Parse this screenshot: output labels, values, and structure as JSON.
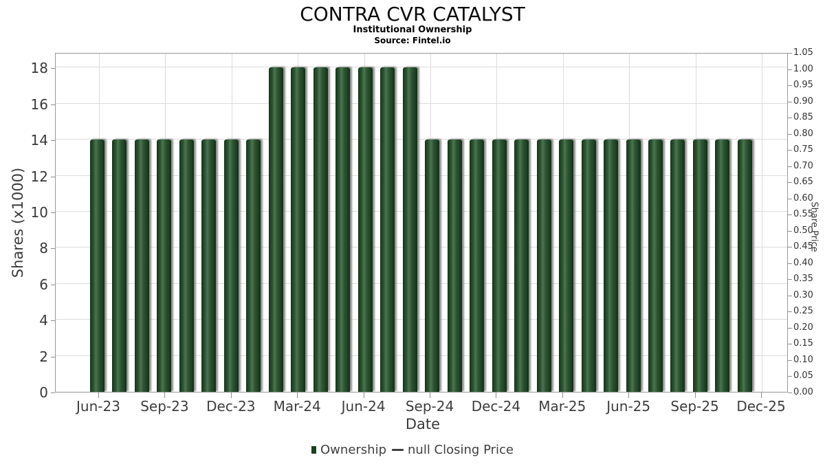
{
  "header": {
    "title": "CONTRA CVR CATALYST",
    "subtitle": "Institutional Ownership",
    "source": "Source: Fintel.io"
  },
  "axes": {
    "left": {
      "label": "Shares (x1000)",
      "ticks": [
        0,
        2,
        4,
        6,
        8,
        10,
        12,
        14,
        16,
        18
      ],
      "range": [
        0,
        18.85
      ]
    },
    "right": {
      "label": "Share Price",
      "ticks": [
        "0.00",
        "0.05",
        "0.10",
        "0.15",
        "0.20",
        "0.25",
        "0.30",
        "0.35",
        "0.40",
        "0.45",
        "0.50",
        "0.55",
        "0.60",
        "0.65",
        "0.70",
        "0.75",
        "0.80",
        "0.85",
        "0.90",
        "0.95",
        "1.00",
        "1.05"
      ],
      "range": [
        0,
        1.05
      ]
    },
    "x": {
      "label": "Date",
      "ticks": [
        "Jun-23",
        "Sep-23",
        "Dec-23",
        "Mar-24",
        "Jun-24",
        "Sep-24",
        "Dec-24",
        "Mar-25",
        "Jun-25",
        "Sep-25",
        "Dec-25"
      ]
    }
  },
  "legend": {
    "items": [
      {
        "label": "Ownership",
        "marker": "square",
        "color": "#1d4022"
      },
      {
        "label": "null Closing Price",
        "marker": "line",
        "color": "#3f3f3f"
      }
    ]
  },
  "chart_data": {
    "type": "bar",
    "title": "CONTRA CVR CATALYST",
    "subtitle": "Institutional Ownership",
    "source": "Source: Fintel.io",
    "xlabel": "Date",
    "ylabel_left": "Shares (x1000)",
    "ylabel_right": "Share Price",
    "ylim_left": [
      0,
      18.85
    ],
    "ylim_right": [
      0,
      1.05
    ],
    "grid": true,
    "legend_position": "bottom",
    "x": [
      "Jun-23",
      "Jul-23",
      "Aug-23",
      "Sep-23",
      "Oct-23",
      "Nov-23",
      "Dec-23",
      "Jan-24",
      "Feb-24",
      "Mar-24",
      "Apr-24",
      "May-24",
      "Jun-24",
      "Jul-24",
      "Aug-24",
      "Sep-24",
      "Oct-24",
      "Nov-24",
      "Dec-24",
      "Jan-25",
      "Feb-25",
      "Mar-25",
      "Apr-25",
      "May-25",
      "Jun-25",
      "Jul-25",
      "Aug-25",
      "Sep-25",
      "Oct-25",
      "Nov-25"
    ],
    "series": [
      {
        "name": "Ownership",
        "type": "bar",
        "color": "#1d4022",
        "values": [
          14,
          14,
          14,
          14,
          14,
          14,
          14,
          14,
          18,
          18,
          18,
          18,
          18,
          18,
          18,
          14,
          14,
          14,
          14,
          14,
          14,
          14,
          14,
          14,
          14,
          14,
          14,
          14,
          14,
          14
        ]
      },
      {
        "name": "null Closing Price",
        "type": "line",
        "color": "#3f3f3f",
        "values": []
      }
    ]
  },
  "colors": {
    "bar_fill": "#1d4022",
    "bar_highlight": "#4a7650",
    "bar_shadow": "#adadad",
    "grid": "#dcdcdc",
    "axis": "#8e8e8e",
    "tick_text": "#383838",
    "title_text": "#0a0a0a"
  }
}
